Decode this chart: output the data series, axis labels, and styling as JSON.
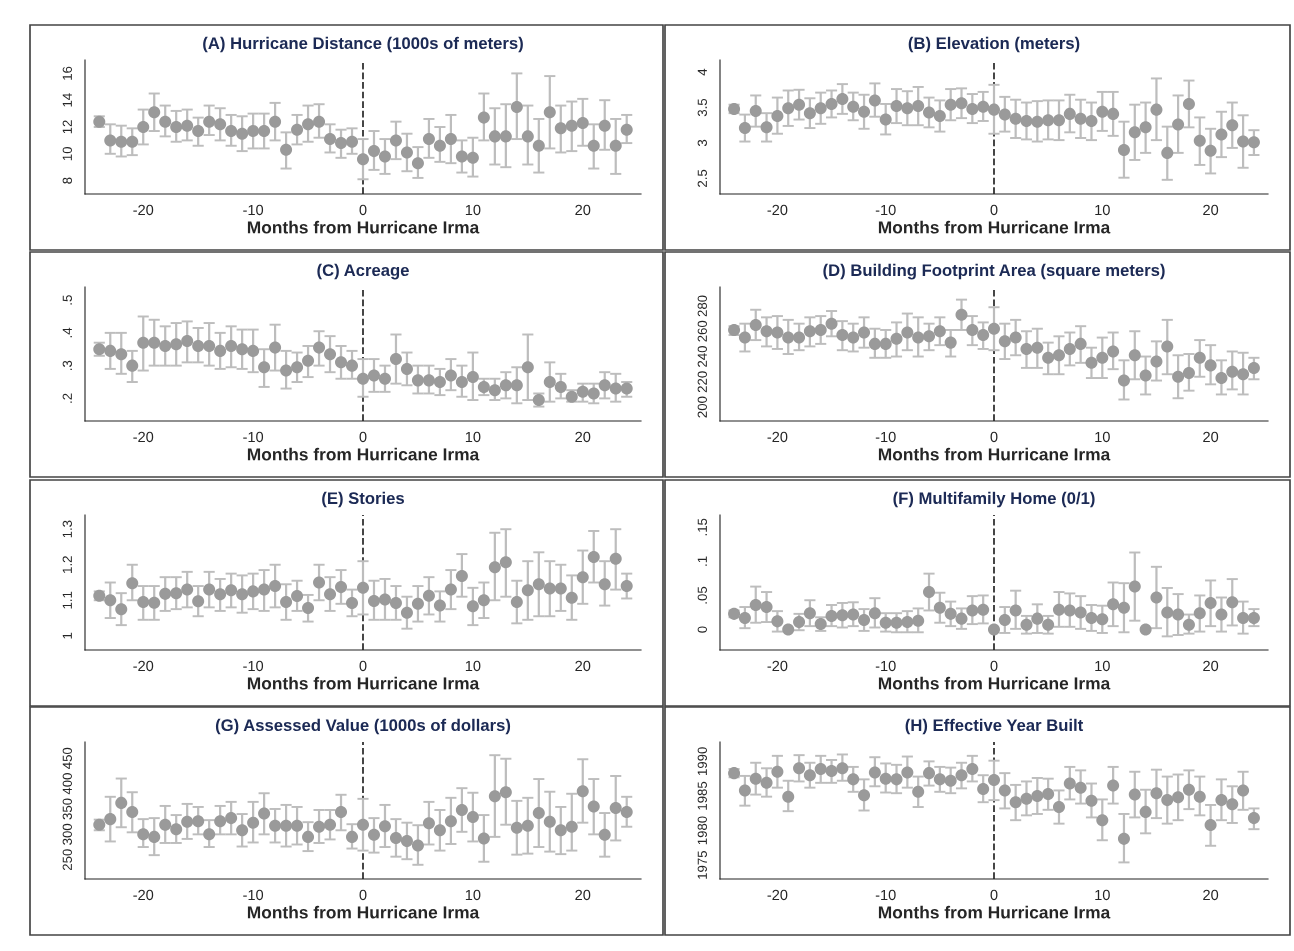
{
  "chart_data": [
    {
      "type": "scatter",
      "title": "(A) Hurricane Distance (1000s of meters)",
      "xlabel": "Months from Hurricane Irma",
      "color": "#9a9a9a",
      "marker": "circle",
      "xlim": [
        -25.3,
        25.3
      ],
      "xticks": [
        -20,
        -10,
        0,
        10,
        20
      ],
      "ylim": [
        7,
        17
      ],
      "yticks": [
        8,
        10,
        12,
        14,
        16
      ],
      "ref_lines": [
        {
          "axis": "x",
          "value": 0,
          "line_style": "dashed",
          "color": "#333333"
        }
      ],
      "x": [
        -24,
        -23,
        -22,
        -21,
        -20,
        -19,
        -18,
        -17,
        -16,
        -15,
        -14,
        -13,
        -12,
        -11,
        -10,
        -9,
        -8,
        -7,
        -6,
        -5,
        -4,
        -3,
        -2,
        -1,
        0,
        1,
        2,
        3,
        4,
        5,
        6,
        7,
        8,
        9,
        10,
        11,
        12,
        13,
        14,
        15,
        16,
        17,
        18,
        19,
        20,
        21,
        22,
        23,
        24
      ],
      "values": [
        12.4,
        11.0,
        10.9,
        10.9,
        12.0,
        13.1,
        12.4,
        12.0,
        12.1,
        11.7,
        12.4,
        12.2,
        11.7,
        11.5,
        11.7,
        11.7,
        12.4,
        10.3,
        11.8,
        12.2,
        12.4,
        11.1,
        10.8,
        10.9,
        9.6,
        10.2,
        9.8,
        11.0,
        10.1,
        9.3,
        11.1,
        10.6,
        11.1,
        9.8,
        9.7,
        12.7,
        11.3,
        11.3,
        13.5,
        11.3,
        10.6,
        13.1,
        11.9,
        12.1,
        12.3,
        10.6,
        12.1,
        10.6,
        11.8
      ],
      "errors": [
        [
          12.0,
          12.8
        ],
        [
          10.0,
          12.2
        ],
        [
          9.8,
          12.1
        ],
        [
          9.9,
          11.9
        ],
        [
          10.7,
          13.3
        ],
        [
          11.7,
          14.5
        ],
        [
          11.3,
          13.6
        ],
        [
          10.9,
          13.2
        ],
        [
          11.0,
          13.3
        ],
        [
          10.6,
          12.7
        ],
        [
          11.4,
          13.6
        ],
        [
          11.0,
          13.4
        ],
        [
          10.6,
          12.9
        ],
        [
          10.2,
          12.8
        ],
        [
          10.4,
          13.0
        ],
        [
          10.4,
          13.0
        ],
        [
          11.0,
          13.8
        ],
        [
          8.9,
          11.6
        ],
        [
          10.7,
          12.9
        ],
        [
          10.9,
          13.6
        ],
        [
          11.2,
          13.7
        ],
        [
          10.1,
          12.2
        ],
        [
          9.7,
          11.8
        ],
        [
          10.0,
          11.9
        ],
        [
          8.1,
          11.1
        ],
        [
          8.8,
          11.7
        ],
        [
          8.5,
          11.1
        ],
        [
          9.6,
          12.4
        ],
        [
          8.7,
          11.5
        ],
        [
          8.2,
          10.5
        ],
        [
          9.7,
          12.6
        ],
        [
          9.4,
          12.0
        ],
        [
          9.3,
          12.9
        ],
        [
          8.6,
          11.0
        ],
        [
          8.3,
          11.2
        ],
        [
          11.0,
          14.5
        ],
        [
          9.2,
          13.4
        ],
        [
          9.0,
          13.7
        ],
        [
          11.1,
          16.0
        ],
        [
          9.2,
          13.6
        ],
        [
          8.6,
          12.6
        ],
        [
          10.4,
          15.8
        ],
        [
          10.1,
          13.6
        ],
        [
          10.2,
          13.9
        ],
        [
          10.6,
          14.1
        ],
        [
          8.9,
          12.2
        ],
        [
          10.3,
          14.0
        ],
        [
          8.5,
          12.6
        ],
        [
          10.8,
          12.9
        ]
      ]
    },
    {
      "type": "scatter",
      "title": "(B) Elevation (meters)",
      "xlabel": "Months from Hurricane Irma",
      "color": "#9a9a9a",
      "marker": "circle",
      "xlim": [
        -25.3,
        25.3
      ],
      "xticks": [
        -20,
        -10,
        0,
        10,
        20
      ],
      "ylim": [
        2.28,
        4.17
      ],
      "yticks": [
        2.5,
        3,
        3.5,
        4
      ],
      "ref_lines": [
        {
          "axis": "x",
          "value": 0,
          "line_style": "dashed",
          "color": "#333333"
        }
      ],
      "x": [
        -24,
        -23,
        -22,
        -21,
        -20,
        -19,
        -18,
        -17,
        -16,
        -15,
        -14,
        -13,
        -12,
        -11,
        -10,
        -9,
        -8,
        -7,
        -6,
        -5,
        -4,
        -3,
        -2,
        -1,
        0,
        1,
        2,
        3,
        4,
        5,
        6,
        7,
        8,
        9,
        10,
        11,
        12,
        13,
        14,
        15,
        16,
        17,
        18,
        19,
        20,
        21,
        22,
        23,
        24
      ],
      "values": [
        3.48,
        3.21,
        3.45,
        3.22,
        3.38,
        3.49,
        3.54,
        3.42,
        3.49,
        3.55,
        3.62,
        3.51,
        3.44,
        3.6,
        3.33,
        3.52,
        3.49,
        3.52,
        3.43,
        3.38,
        3.54,
        3.56,
        3.48,
        3.51,
        3.47,
        3.4,
        3.34,
        3.31,
        3.3,
        3.32,
        3.32,
        3.41,
        3.34,
        3.31,
        3.44,
        3.41,
        2.9,
        3.15,
        3.22,
        3.47,
        2.86,
        3.26,
        3.55,
        3.03,
        2.89,
        3.12,
        3.25,
        3.02,
        3.01
      ],
      "errors": [
        [
          3.42,
          3.54
        ],
        [
          3.02,
          3.4
        ],
        [
          3.23,
          3.67
        ],
        [
          3.02,
          3.42
        ],
        [
          3.13,
          3.64
        ],
        [
          3.24,
          3.74
        ],
        [
          3.33,
          3.75
        ],
        [
          3.21,
          3.63
        ],
        [
          3.27,
          3.71
        ],
        [
          3.36,
          3.74
        ],
        [
          3.41,
          3.83
        ],
        [
          3.32,
          3.71
        ],
        [
          3.2,
          3.68
        ],
        [
          3.37,
          3.84
        ],
        [
          3.12,
          3.55
        ],
        [
          3.28,
          3.76
        ],
        [
          3.25,
          3.73
        ],
        [
          3.25,
          3.79
        ],
        [
          3.22,
          3.64
        ],
        [
          3.16,
          3.6
        ],
        [
          3.32,
          3.76
        ],
        [
          3.35,
          3.77
        ],
        [
          3.28,
          3.69
        ],
        [
          3.31,
          3.72
        ],
        [
          3.13,
          3.82
        ],
        [
          3.16,
          3.65
        ],
        [
          3.07,
          3.61
        ],
        [
          3.05,
          3.57
        ],
        [
          3.02,
          3.59
        ],
        [
          3.05,
          3.6
        ],
        [
          3.04,
          3.6
        ],
        [
          3.15,
          3.68
        ],
        [
          3.07,
          3.61
        ],
        [
          3.04,
          3.57
        ],
        [
          3.17,
          3.72
        ],
        [
          3.1,
          3.72
        ],
        [
          2.51,
          3.3
        ],
        [
          2.76,
          3.54
        ],
        [
          2.86,
          3.57
        ],
        [
          3.04,
          3.91
        ],
        [
          2.48,
          3.23
        ],
        [
          2.86,
          3.67
        ],
        [
          3.22,
          3.88
        ],
        [
          2.69,
          3.36
        ],
        [
          2.57,
          3.2
        ],
        [
          2.8,
          3.44
        ],
        [
          2.93,
          3.57
        ],
        [
          2.65,
          3.39
        ],
        [
          2.83,
          3.18
        ]
      ]
    },
    {
      "type": "scatter",
      "title": "(C) Acreage",
      "xlabel": "Months from Hurricane Irma",
      "color": "#9a9a9a",
      "marker": "circle",
      "xlim": [
        -25.3,
        25.3
      ],
      "xticks": [
        -20,
        -10,
        0,
        10,
        20
      ],
      "ylim": [
        0.131,
        0.54
      ],
      "yticks": [
        {
          "value": 0.2,
          "label": ".2"
        },
        {
          "value": 0.3,
          "label": ".3"
        },
        {
          "value": 0.4,
          "label": ".4"
        },
        {
          "value": 0.5,
          "label": ".5"
        }
      ],
      "ref_lines": [
        {
          "axis": "x",
          "value": 0,
          "line_style": "dashed",
          "color": "#333333"
        }
      ],
      "x": [
        -24,
        -23,
        -22,
        -21,
        -20,
        -19,
        -18,
        -17,
        -16,
        -15,
        -14,
        -13,
        -12,
        -11,
        -10,
        -9,
        -8,
        -7,
        -6,
        -5,
        -4,
        -3,
        -2,
        -1,
        0,
        1,
        2,
        3,
        4,
        5,
        6,
        7,
        8,
        9,
        10,
        11,
        12,
        13,
        14,
        15,
        16,
        17,
        18,
        19,
        20,
        21,
        22,
        23,
        24
      ],
      "values": [
        0.35,
        0.345,
        0.335,
        0.3,
        0.37,
        0.37,
        0.36,
        0.365,
        0.375,
        0.36,
        0.36,
        0.345,
        0.36,
        0.35,
        0.345,
        0.295,
        0.355,
        0.285,
        0.295,
        0.315,
        0.355,
        0.335,
        0.31,
        0.3,
        0.26,
        0.27,
        0.26,
        0.32,
        0.29,
        0.255,
        0.255,
        0.25,
        0.27,
        0.25,
        0.265,
        0.235,
        0.225,
        0.24,
        0.24,
        0.295,
        0.195,
        0.25,
        0.235,
        0.205,
        0.22,
        0.215,
        0.24,
        0.23,
        0.23
      ],
      "errors": [
        [
          0.33,
          0.37
        ],
        [
          0.29,
          0.4
        ],
        [
          0.275,
          0.4
        ],
        [
          0.25,
          0.345
        ],
        [
          0.285,
          0.45
        ],
        [
          0.3,
          0.44
        ],
        [
          0.3,
          0.42
        ],
        [
          0.3,
          0.43
        ],
        [
          0.31,
          0.435
        ],
        [
          0.31,
          0.415
        ],
        [
          0.3,
          0.43
        ],
        [
          0.29,
          0.4
        ],
        [
          0.295,
          0.42
        ],
        [
          0.29,
          0.41
        ],
        [
          0.28,
          0.41
        ],
        [
          0.235,
          0.35
        ],
        [
          0.285,
          0.425
        ],
        [
          0.23,
          0.345
        ],
        [
          0.25,
          0.34
        ],
        [
          0.265,
          0.36
        ],
        [
          0.3,
          0.405
        ],
        [
          0.28,
          0.39
        ],
        [
          0.26,
          0.36
        ],
        [
          0.26,
          0.345
        ],
        [
          0.205,
          0.32
        ],
        [
          0.22,
          0.32
        ],
        [
          0.22,
          0.3
        ],
        [
          0.245,
          0.395
        ],
        [
          0.24,
          0.34
        ],
        [
          0.215,
          0.3
        ],
        [
          0.215,
          0.3
        ],
        [
          0.21,
          0.29
        ],
        [
          0.225,
          0.32
        ],
        [
          0.205,
          0.3
        ],
        [
          0.195,
          0.34
        ],
        [
          0.21,
          0.26
        ],
        [
          0.195,
          0.26
        ],
        [
          0.2,
          0.28
        ],
        [
          0.185,
          0.295
        ],
        [
          0.195,
          0.395
        ],
        [
          0.175,
          0.215
        ],
        [
          0.19,
          0.31
        ],
        [
          0.2,
          0.275
        ],
        [
          0.19,
          0.225
        ],
        [
          0.19,
          0.245
        ],
        [
          0.185,
          0.245
        ],
        [
          0.2,
          0.28
        ],
        [
          0.19,
          0.275
        ],
        [
          0.205,
          0.25
        ]
      ]
    },
    {
      "type": "scatter",
      "title": "(D) Building Footprint Area (square meters)",
      "xlabel": "Months from Hurricane Irma",
      "color": "#9a9a9a",
      "marker": "circle",
      "xlim": [
        -25.3,
        25.3
      ],
      "xticks": [
        -20,
        -10,
        0,
        10,
        20
      ],
      "ylim": [
        189,
        295
      ],
      "yticks": [
        200,
        220,
        240,
        260,
        280
      ],
      "ref_lines": [
        {
          "axis": "x",
          "value": 0,
          "line_style": "dashed",
          "color": "#333333"
        }
      ],
      "x": [
        -24,
        -23,
        -22,
        -21,
        -20,
        -19,
        -18,
        -17,
        -16,
        -15,
        -14,
        -13,
        -12,
        -11,
        -10,
        -9,
        -8,
        -7,
        -6,
        -5,
        -4,
        -3,
        -2,
        -1,
        0,
        1,
        2,
        3,
        4,
        5,
        6,
        7,
        8,
        9,
        10,
        11,
        12,
        13,
        14,
        15,
        16,
        17,
        18,
        19,
        20,
        21,
        22,
        23,
        24
      ],
      "values": [
        261,
        255,
        265,
        260,
        259,
        255,
        255,
        260,
        261,
        266,
        257,
        255,
        259,
        250,
        250,
        254,
        259,
        255,
        256,
        260,
        251,
        273,
        261,
        257,
        262,
        252,
        255,
        246,
        247,
        239,
        241,
        246,
        250,
        235,
        239,
        244,
        221,
        241,
        225,
        236,
        248,
        224,
        227,
        239,
        233,
        223,
        228,
        226,
        231
      ],
      "errors": [
        [
          257,
          264
        ],
        [
          244,
          266
        ],
        [
          253,
          277
        ],
        [
          248,
          271
        ],
        [
          246,
          272
        ],
        [
          242,
          269
        ],
        [
          245,
          266
        ],
        [
          248,
          271
        ],
        [
          250,
          272
        ],
        [
          256,
          276
        ],
        [
          245,
          268
        ],
        [
          244,
          266
        ],
        [
          247,
          271
        ],
        [
          239,
          262
        ],
        [
          239,
          261
        ],
        [
          240,
          267
        ],
        [
          245,
          274
        ],
        [
          240,
          271
        ],
        [
          245,
          266
        ],
        [
          249,
          271
        ],
        [
          240,
          261
        ],
        [
          261,
          285
        ],
        [
          249,
          272
        ],
        [
          246,
          267
        ],
        [
          245,
          279
        ],
        [
          238,
          266
        ],
        [
          241,
          269
        ],
        [
          231,
          260
        ],
        [
          231,
          262
        ],
        [
          226,
          251
        ],
        [
          226,
          256
        ],
        [
          233,
          259
        ],
        [
          235,
          264
        ],
        [
          223,
          247
        ],
        [
          223,
          255
        ],
        [
          230,
          259
        ],
        [
          206,
          237
        ],
        [
          222,
          260
        ],
        [
          210,
          240
        ],
        [
          221,
          252
        ],
        [
          226,
          269
        ],
        [
          207,
          241
        ],
        [
          213,
          242
        ],
        [
          224,
          253
        ],
        [
          218,
          249
        ],
        [
          210,
          237
        ],
        [
          214,
          244
        ],
        [
          210,
          243
        ],
        [
          222,
          239
        ]
      ]
    },
    {
      "type": "scatter",
      "title": "(E) Stories",
      "xlabel": "Months from Hurricane Irma",
      "color": "#9a9a9a",
      "marker": "circle",
      "xlim": [
        -25.3,
        25.3
      ],
      "xticks": [
        -20,
        -10,
        0,
        10,
        20
      ],
      "ylim": [
        0.96,
        1.34
      ],
      "yticks": [
        1,
        1.1,
        1.2,
        1.3
      ],
      "ref_lines": [
        {
          "axis": "x",
          "value": 0,
          "line_style": "dashed",
          "color": "#333333"
        }
      ],
      "x": [
        -24,
        -23,
        -22,
        -21,
        -20,
        -19,
        -18,
        -17,
        -16,
        -15,
        -14,
        -13,
        -12,
        -11,
        -10,
        -9,
        -8,
        -7,
        -6,
        -5,
        -4,
        -3,
        -2,
        -1,
        0,
        1,
        2,
        3,
        4,
        5,
        6,
        7,
        8,
        9,
        10,
        11,
        12,
        13,
        14,
        15,
        16,
        17,
        18,
        19,
        20,
        21,
        22,
        23,
        24
      ],
      "values": [
        1.113,
        1.1,
        1.075,
        1.148,
        1.095,
        1.093,
        1.118,
        1.12,
        1.13,
        1.097,
        1.13,
        1.117,
        1.128,
        1.117,
        1.125,
        1.13,
        1.14,
        1.095,
        1.112,
        1.078,
        1.15,
        1.117,
        1.137,
        1.092,
        1.135,
        1.098,
        1.102,
        1.092,
        1.065,
        1.09,
        1.113,
        1.085,
        1.13,
        1.168,
        1.083,
        1.1,
        1.193,
        1.207,
        1.095,
        1.128,
        1.145,
        1.133,
        1.133,
        1.107,
        1.165,
        1.222,
        1.145,
        1.217,
        1.14
      ],
      "errors": [
        [
          1.1,
          1.125
        ],
        [
          1.05,
          1.15
        ],
        [
          1.03,
          1.12
        ],
        [
          1.1,
          1.2
        ],
        [
          1.045,
          1.14
        ],
        [
          1.045,
          1.14
        ],
        [
          1.07,
          1.165
        ],
        [
          1.075,
          1.165
        ],
        [
          1.08,
          1.18
        ],
        [
          1.055,
          1.14
        ],
        [
          1.08,
          1.18
        ],
        [
          1.07,
          1.16
        ],
        [
          1.08,
          1.175
        ],
        [
          1.065,
          1.17
        ],
        [
          1.075,
          1.175
        ],
        [
          1.07,
          1.185
        ],
        [
          1.08,
          1.2
        ],
        [
          1.045,
          1.145
        ],
        [
          1.07,
          1.155
        ],
        [
          1.04,
          1.115
        ],
        [
          1.1,
          1.2
        ],
        [
          1.07,
          1.165
        ],
        [
          1.09,
          1.185
        ],
        [
          1.055,
          1.13
        ],
        [
          1.06,
          1.21
        ],
        [
          1.045,
          1.155
        ],
        [
          1.045,
          1.16
        ],
        [
          1.045,
          1.14
        ],
        [
          1.02,
          1.11
        ],
        [
          1.04,
          1.14
        ],
        [
          1.06,
          1.165
        ],
        [
          1.04,
          1.125
        ],
        [
          1.075,
          1.185
        ],
        [
          1.11,
          1.23
        ],
        [
          1.03,
          1.135
        ],
        [
          1.05,
          1.15
        ],
        [
          1.1,
          1.29
        ],
        [
          1.11,
          1.3
        ],
        [
          1.035,
          1.155
        ],
        [
          1.045,
          1.21
        ],
        [
          1.055,
          1.235
        ],
        [
          1.055,
          1.21
        ],
        [
          1.07,
          1.2
        ],
        [
          1.045,
          1.17
        ],
        [
          1.09,
          1.24
        ],
        [
          1.15,
          1.295
        ],
        [
          1.085,
          1.21
        ],
        [
          1.13,
          1.3
        ],
        [
          1.105,
          1.175
        ]
      ]
    },
    {
      "type": "scatter",
      "title": "(F) Multifamily Home (0/1)",
      "xlabel": "Months from Hurricane Irma",
      "color": "#9a9a9a",
      "marker": "circle",
      "xlim": [
        -25.3,
        25.3
      ],
      "xticks": [
        -20,
        -10,
        0,
        10,
        20
      ],
      "ylim": [
        -0.03,
        0.168
      ],
      "yticks": [
        0,
        {
          "value": 0.05,
          "label": ".05"
        },
        {
          "value": 0.1,
          "label": ".1"
        },
        {
          "value": 0.15,
          "label": ".15"
        }
      ],
      "ref_lines": [
        {
          "axis": "x",
          "value": 0,
          "line_style": "dashed",
          "color": "#333333"
        }
      ],
      "x": [
        -24,
        -23,
        -22,
        -21,
        -20,
        -19,
        -18,
        -17,
        -16,
        -15,
        -14,
        -13,
        -12,
        -11,
        -10,
        -9,
        -8,
        -7,
        -6,
        -5,
        -4,
        -3,
        -2,
        -1,
        0,
        1,
        2,
        3,
        4,
        5,
        6,
        7,
        8,
        9,
        10,
        11,
        12,
        13,
        14,
        15,
        16,
        17,
        18,
        19,
        20,
        21,
        22,
        23,
        24
      ],
      "values": [
        0.023,
        0.017,
        0.036,
        0.033,
        0.012,
        0.0,
        0.011,
        0.024,
        0.008,
        0.02,
        0.021,
        0.022,
        0.014,
        0.024,
        0.01,
        0.01,
        0.011,
        0.013,
        0.055,
        0.032,
        0.023,
        0.016,
        0.028,
        0.029,
        0.0,
        0.014,
        0.028,
        0.007,
        0.016,
        0.007,
        0.029,
        0.028,
        0.025,
        0.017,
        0.015,
        0.037,
        0.032,
        0.063,
        0.0,
        0.047,
        0.025,
        0.022,
        0.007,
        0.024,
        0.039,
        0.022,
        0.04,
        0.017,
        0.017
      ],
      "errors": [
        [
          0.018,
          0.028
        ],
        [
          0.002,
          0.033
        ],
        [
          0.01,
          0.063
        ],
        [
          0.011,
          0.055
        ],
        [
          -0.003,
          0.027
        ],
        null,
        [
          -0.001,
          0.023
        ],
        [
          0.005,
          0.043
        ],
        [
          -0.002,
          0.018
        ],
        [
          0.005,
          0.036
        ],
        [
          0.003,
          0.039
        ],
        [
          0.005,
          0.04
        ],
        [
          -0.002,
          0.03
        ],
        [
          0.003,
          0.046
        ],
        [
          -0.003,
          0.024
        ],
        [
          -0.004,
          0.024
        ],
        [
          -0.004,
          0.027
        ],
        [
          -0.004,
          0.031
        ],
        [
          0.028,
          0.082
        ],
        [
          0.01,
          0.054
        ],
        [
          0.005,
          0.041
        ],
        [
          0.001,
          0.031
        ],
        [
          0.008,
          0.049
        ],
        [
          0.009,
          0.05
        ],
        null,
        [
          -0.005,
          0.033
        ],
        [
          0.001,
          0.057
        ],
        [
          -0.006,
          0.02
        ],
        [
          -0.005,
          0.037
        ],
        [
          -0.006,
          0.02
        ],
        [
          0.004,
          0.055
        ],
        [
          0.004,
          0.053
        ],
        [
          0.001,
          0.049
        ],
        [
          -0.002,
          0.036
        ],
        [
          -0.005,
          0.035
        ],
        [
          0.005,
          0.069
        ],
        [
          -0.004,
          0.068
        ],
        [
          0.013,
          0.113
        ],
        null,
        [
          0.002,
          0.092
        ],
        [
          -0.01,
          0.061
        ],
        [
          -0.008,
          0.052
        ],
        [
          -0.006,
          0.022
        ],
        [
          -0.003,
          0.05
        ],
        [
          0.005,
          0.072
        ],
        [
          -0.003,
          0.047
        ],
        [
          0.006,
          0.074
        ],
        [
          -0.006,
          0.041
        ],
        [
          0.005,
          0.03
        ]
      ]
    },
    {
      "type": "scatter",
      "title": "(G) Assessed Value (1000s of dollars)",
      "xlabel": "Months from Hurricane Irma",
      "color": "#9a9a9a",
      "marker": "circle",
      "xlim": [
        -25.3,
        25.3
      ],
      "xticks": [
        -20,
        -10,
        0,
        10,
        20
      ],
      "ylim": [
        212,
        482
      ],
      "yticks": [
        250,
        300,
        350,
        400,
        450
      ],
      "ref_lines": [
        {
          "axis": "x",
          "value": 0,
          "line_style": "dashed",
          "color": "#333333"
        }
      ],
      "x": [
        -24,
        -23,
        -22,
        -21,
        -20,
        -19,
        -18,
        -17,
        -16,
        -15,
        -14,
        -13,
        -12,
        -11,
        -10,
        -9,
        -8,
        -7,
        -6,
        -5,
        -4,
        -3,
        -2,
        -1,
        0,
        1,
        2,
        3,
        4,
        5,
        6,
        7,
        8,
        9,
        10,
        11,
        12,
        13,
        14,
        15,
        16,
        17,
        18,
        19,
        20,
        21,
        22,
        23,
        24
      ],
      "values": [
        319,
        330,
        362,
        344,
        300,
        295,
        319,
        310,
        325,
        326,
        300,
        326,
        332,
        308,
        323,
        341,
        317,
        317,
        317,
        295,
        315,
        319,
        344,
        295,
        319,
        299,
        316,
        293,
        287,
        278,
        322,
        308,
        326,
        348,
        334,
        292,
        375,
        383,
        313,
        317,
        342,
        325,
        308,
        315,
        385,
        355,
        299,
        352,
        344
      ],
      "errors": [
        [
          308,
          329
        ],
        [
          286,
          374
        ],
        [
          314,
          410
        ],
        [
          304,
          383
        ],
        [
          275,
          330
        ],
        [
          259,
          332
        ],
        [
          283,
          356
        ],
        [
          283,
          338
        ],
        [
          291,
          360
        ],
        [
          300,
          354
        ],
        [
          275,
          328
        ],
        [
          300,
          356
        ],
        [
          300,
          364
        ],
        [
          276,
          340
        ],
        [
          284,
          364
        ],
        [
          300,
          381
        ],
        [
          284,
          350
        ],
        [
          276,
          358
        ],
        [
          280,
          354
        ],
        [
          267,
          324
        ],
        [
          283,
          348
        ],
        [
          290,
          348
        ],
        [
          308,
          378
        ],
        [
          272,
          320
        ],
        [
          268,
          370
        ],
        [
          264,
          332
        ],
        [
          275,
          358
        ],
        [
          256,
          330
        ],
        [
          251,
          323
        ],
        [
          240,
          318
        ],
        [
          280,
          364
        ],
        [
          268,
          348
        ],
        [
          281,
          372
        ],
        [
          305,
          391
        ],
        [
          286,
          382
        ],
        [
          246,
          338
        ],
        [
          295,
          456
        ],
        [
          319,
          449
        ],
        [
          260,
          366
        ],
        [
          262,
          372
        ],
        [
          275,
          409
        ],
        [
          266,
          384
        ],
        [
          261,
          354
        ],
        [
          268,
          380
        ],
        [
          323,
          448
        ],
        [
          300,
          409
        ],
        [
          256,
          342
        ],
        [
          288,
          415
        ],
        [
          315,
          374
        ]
      ]
    },
    {
      "type": "scatter",
      "title": "(H) Effective Year Built",
      "xlabel": "Months from Hurricane Irma",
      "color": "#9a9a9a",
      "marker": "circle",
      "xlim": [
        -25.3,
        25.3
      ],
      "xticks": [
        -20,
        -10,
        0,
        10,
        20
      ],
      "ylim": [
        1973,
        1992.8
      ],
      "yticks": [
        1975,
        1980,
        1985,
        1990
      ],
      "ref_lines": [
        {
          "axis": "x",
          "value": 0,
          "line_style": "dashed",
          "color": "#333333"
        }
      ],
      "x": [
        -24,
        -23,
        -22,
        -21,
        -20,
        -19,
        -18,
        -17,
        -16,
        -15,
        -14,
        -13,
        -12,
        -11,
        -10,
        -9,
        -8,
        -7,
        -6,
        -5,
        -4,
        -3,
        -2,
        -1,
        0,
        1,
        2,
        3,
        4,
        5,
        6,
        7,
        8,
        9,
        10,
        11,
        12,
        13,
        14,
        15,
        16,
        17,
        18,
        19,
        20,
        21,
        22,
        23,
        24
      ],
      "values": [
        1988.3,
        1985.8,
        1987.5,
        1986.9,
        1988.5,
        1984.9,
        1989.0,
        1988.0,
        1988.9,
        1988.6,
        1989.0,
        1987.4,
        1985.1,
        1988.4,
        1987.5,
        1987.4,
        1988.4,
        1985.6,
        1988.3,
        1987.4,
        1987.2,
        1988.0,
        1988.9,
        1986.0,
        1987.3,
        1985.8,
        1984.1,
        1984.6,
        1985.0,
        1985.3,
        1983.4,
        1986.8,
        1986.2,
        1984.3,
        1981.5,
        1986.5,
        1978.8,
        1985.2,
        1982.7,
        1985.4,
        1984.4,
        1984.8,
        1985.9,
        1984.9,
        1980.8,
        1984.4,
        1983.8,
        1985.8,
        1981.8
      ],
      "errors": [
        [
          1987.7,
          1988.9
        ],
        [
          1983.6,
          1987.9
        ],
        [
          1985.2,
          1989.8
        ],
        [
          1984.9,
          1989.0
        ],
        [
          1986.2,
          1990.8
        ],
        [
          1982.8,
          1987.2
        ],
        [
          1987.1,
          1990.9
        ],
        [
          1986.2,
          1989.8
        ],
        [
          1986.9,
          1990.8
        ],
        [
          1986.9,
          1990.2
        ],
        [
          1987.2,
          1991.0
        ],
        [
          1985.6,
          1989.2
        ],
        [
          1982.9,
          1987.4
        ],
        [
          1986.4,
          1990.6
        ],
        [
          1985.5,
          1989.7
        ],
        [
          1985.4,
          1989.5
        ],
        [
          1986.2,
          1990.7
        ],
        [
          1983.4,
          1987.8
        ],
        [
          1986.5,
          1990.0
        ],
        [
          1985.6,
          1989.2
        ],
        [
          1985.4,
          1989.1
        ],
        [
          1986.1,
          1989.8
        ],
        [
          1987.1,
          1990.8
        ],
        [
          1984.1,
          1988.0
        ],
        [
          1984.4,
          1990.1
        ],
        [
          1983.2,
          1988.3
        ],
        [
          1981.5,
          1986.6
        ],
        [
          1982.2,
          1987.1
        ],
        [
          1982.4,
          1987.6
        ],
        [
          1983.0,
          1987.5
        ],
        [
          1981.0,
          1985.8
        ],
        [
          1984.5,
          1989.2
        ],
        [
          1983.9,
          1988.7
        ],
        [
          1981.9,
          1986.8
        ],
        [
          1978.6,
          1984.5
        ],
        [
          1983.9,
          1989.2
        ],
        [
          1975.4,
          1982.4
        ],
        [
          1981.9,
          1988.5
        ],
        [
          1979.6,
          1985.9
        ],
        [
          1981.8,
          1988.8
        ],
        [
          1981.0,
          1987.8
        ],
        [
          1981.5,
          1988.1
        ],
        [
          1983.1,
          1988.7
        ],
        [
          1982.2,
          1987.8
        ],
        [
          1977.8,
          1983.7
        ],
        [
          1981.5,
          1987.4
        ],
        [
          1981.1,
          1986.4
        ],
        [
          1983.0,
          1988.5
        ],
        [
          1980.2,
          1983.2
        ]
      ]
    }
  ]
}
